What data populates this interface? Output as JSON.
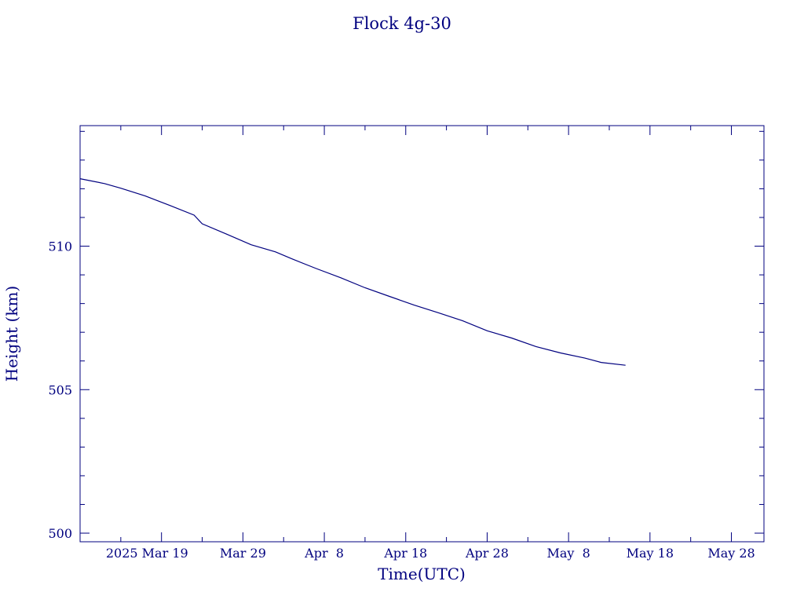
{
  "chart_data": {
    "type": "line",
    "title": "Flock 4g-30",
    "xlabel": "Time(UTC)",
    "ylabel": "Height (km)",
    "x_tick_labels": [
      "2025 Mar 19",
      "Mar 29",
      "Apr  8",
      "Apr 18",
      "Apr 28",
      "May  8",
      "May 18",
      "May 28"
    ],
    "x_tick_dates": [
      "2025-03-19",
      "2025-03-29",
      "2025-04-08",
      "2025-04-18",
      "2025-04-28",
      "2025-05-08",
      "2025-05-18",
      "2025-05-28"
    ],
    "y_tick_labels": [
      "500",
      "505",
      "510"
    ],
    "xlim": [
      "2025-03-09",
      "2025-06-01"
    ],
    "ylim": [
      499.7,
      514.2
    ],
    "grid": false,
    "colors": {
      "line": "#00007f",
      "axes": "#00007f",
      "text": "#00007f"
    },
    "series": [
      {
        "x": [
          "2025-03-09",
          "2025-03-12",
          "2025-03-14",
          "2025-03-17",
          "2025-03-20",
          "2025-03-23",
          "2025-03-24",
          "2025-03-27",
          "2025-03-30",
          "2025-04-02",
          "2025-04-04",
          "2025-04-07",
          "2025-04-10",
          "2025-04-13",
          "2025-04-16",
          "2025-04-19",
          "2025-04-22",
          "2025-04-25",
          "2025-04-28",
          "2025-05-01",
          "2025-05-04",
          "2025-05-07",
          "2025-05-10",
          "2025-05-12",
          "2025-05-15"
        ],
        "y": [
          512.35,
          512.18,
          512.02,
          511.75,
          511.42,
          511.08,
          510.78,
          510.42,
          510.05,
          509.8,
          509.56,
          509.22,
          508.9,
          508.55,
          508.25,
          507.95,
          507.68,
          507.4,
          507.05,
          506.8,
          506.5,
          506.28,
          506.1,
          505.95,
          505.85
        ]
      }
    ]
  }
}
